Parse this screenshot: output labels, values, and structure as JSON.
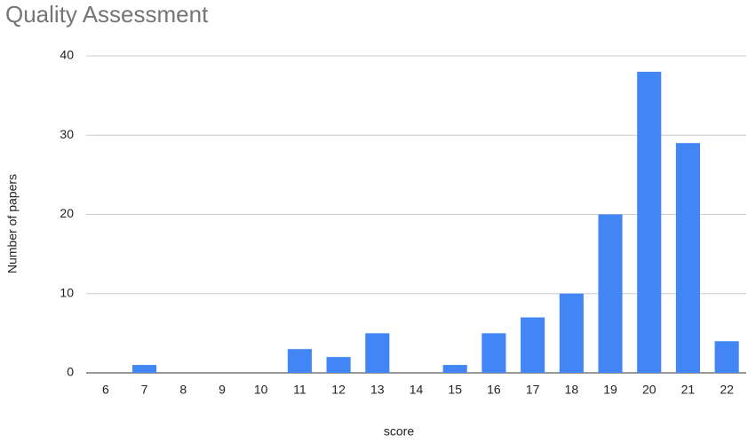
{
  "chart_data": {
    "type": "bar",
    "title": "Quality Assessment",
    "x_label": "score",
    "y_label": "Number of papers",
    "categories": [
      "6",
      "7",
      "8",
      "9",
      "10",
      "11",
      "12",
      "13",
      "14",
      "15",
      "16",
      "17",
      "18",
      "19",
      "20",
      "21",
      "22"
    ],
    "values": [
      0,
      1,
      0,
      0,
      0,
      3,
      2,
      5,
      0,
      1,
      5,
      7,
      10,
      20,
      38,
      29,
      4
    ],
    "color": "#4285f4",
    "ylim": [
      0,
      40
    ],
    "yticks": [
      0,
      10,
      20,
      30,
      40
    ],
    "grid": true
  }
}
